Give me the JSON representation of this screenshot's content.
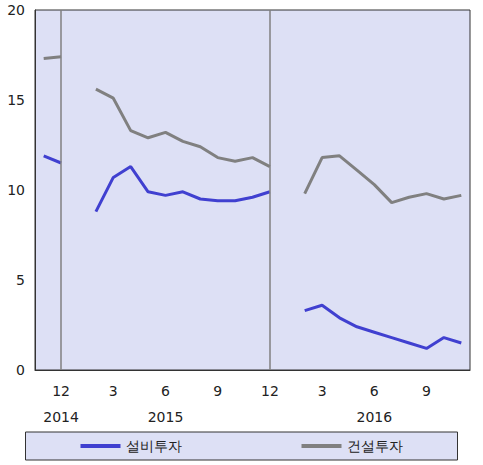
{
  "chart_data": {
    "type": "line",
    "categories": [
      null,
      "12",
      null,
      null,
      "3",
      null,
      null,
      "6",
      null,
      null,
      "9",
      null,
      null,
      "12",
      null,
      null,
      "3",
      null,
      null,
      "6",
      null,
      null,
      "9",
      null,
      null
    ],
    "year_labels": [
      null,
      "2014",
      null,
      null,
      null,
      null,
      null,
      "2015",
      null,
      null,
      null,
      null,
      null,
      null,
      null,
      null,
      null,
      null,
      null,
      "2016",
      null,
      null,
      null,
      null,
      null
    ],
    "series": [
      {
        "name": "설비투자",
        "color": "#4040d0",
        "values": [
          11.9,
          11.5,
          null,
          8.8,
          10.7,
          11.3,
          9.9,
          9.7,
          9.9,
          9.5,
          9.4,
          9.4,
          9.6,
          9.9,
          null,
          3.3,
          3.6,
          2.9,
          2.4,
          2.1,
          1.8,
          1.5,
          1.2,
          1.8,
          1.5
        ]
      },
      {
        "name": "건설투자",
        "color": "#808080",
        "values": [
          17.3,
          17.4,
          null,
          15.6,
          15.1,
          13.3,
          12.9,
          13.2,
          12.7,
          12.4,
          11.8,
          11.6,
          11.8,
          11.3,
          null,
          9.8,
          11.8,
          11.9,
          11.1,
          10.3,
          9.3,
          9.6,
          9.8,
          9.5,
          9.7
        ]
      }
    ],
    "ylim": [
      0,
      20
    ],
    "yticks": [
      0,
      5,
      10,
      15,
      20
    ],
    "grid": false,
    "legend": "bottom"
  }
}
